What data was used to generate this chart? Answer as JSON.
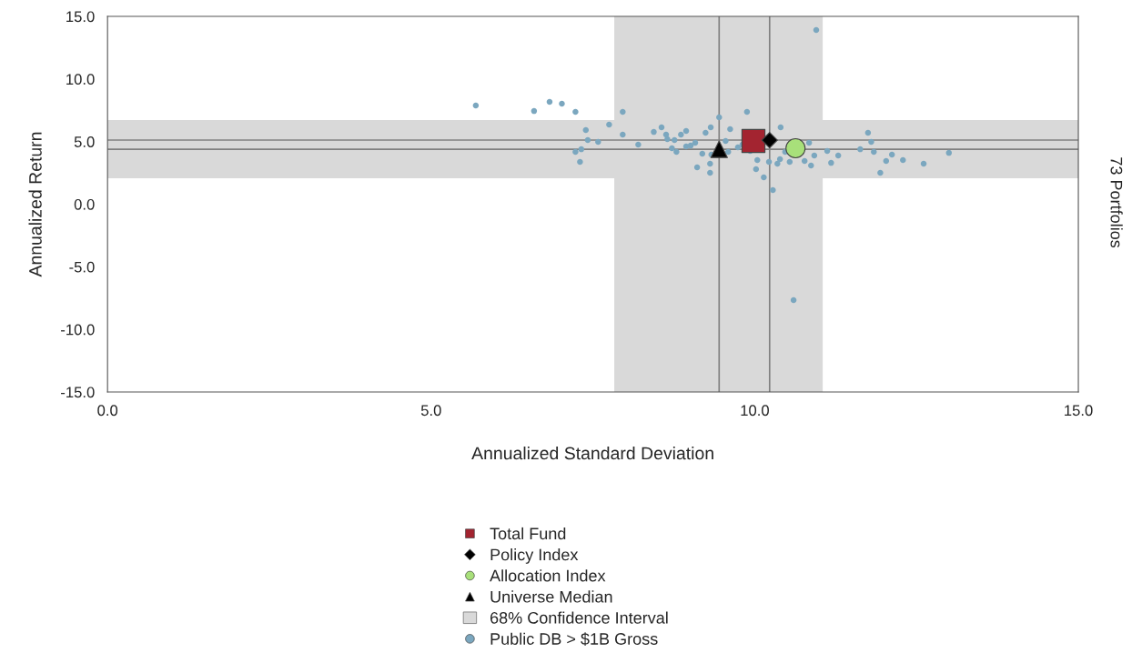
{
  "chart_data": {
    "type": "scatter",
    "xlabel": "Annualized Standard Deviation",
    "ylabel": "Annualized Return",
    "annotations": [
      "73 Portfolios"
    ],
    "xlim": [
      0,
      15
    ],
    "ylim": [
      -15,
      15
    ],
    "xticks": [
      {
        "value": 0,
        "label": "0.0"
      },
      {
        "value": 5,
        "label": "5.0"
      },
      {
        "value": 10,
        "label": "10.0"
      },
      {
        "value": 15,
        "label": "15.0"
      }
    ],
    "yticks": [
      {
        "value": -15,
        "label": "-15.0"
      },
      {
        "value": -10,
        "label": "-10.0"
      },
      {
        "value": -5,
        "label": "-5.0"
      },
      {
        "value": 0,
        "label": "0.0"
      },
      {
        "value": 5,
        "label": "5.0"
      },
      {
        "value": 10,
        "label": "10.0"
      },
      {
        "value": 15,
        "label": "15.0"
      }
    ],
    "grid": false,
    "legend": "bottom",
    "bands": [
      {
        "axis": "x",
        "from": 7.83,
        "to": 11.05,
        "label": "68% Confidence Interval",
        "color": "#d9d9d9"
      },
      {
        "axis": "y",
        "from": 2.07,
        "to": 6.72,
        "label": null,
        "color": "#d9d9d9"
      }
    ],
    "ref_lines": [
      {
        "axis": "x",
        "value": 9.45,
        "label": null,
        "color": "#808080"
      },
      {
        "axis": "x",
        "value": 10.23,
        "label": null,
        "color": "#808080"
      },
      {
        "axis": "y",
        "value": 5.12,
        "label": null,
        "color": "#808080"
      },
      {
        "axis": "y",
        "value": 4.39,
        "label": null,
        "color": "#808080"
      }
    ],
    "series": [
      {
        "name": "Total Fund",
        "color": "#a32430",
        "marker": "square",
        "x": [
          9.98
        ],
        "values": [
          5.05
        ]
      },
      {
        "name": "Policy Index",
        "color": "#000000",
        "marker": "diamond",
        "x": [
          10.23
        ],
        "values": [
          5.12
        ]
      },
      {
        "name": "Allocation Index",
        "color": "#a8e07a",
        "marker": "circle",
        "x": [
          10.63
        ],
        "values": [
          4.47
        ]
      },
      {
        "name": "Universe Median",
        "color": "#000000",
        "marker": "triangle",
        "x": [
          9.45
        ],
        "values": [
          4.39
        ]
      },
      {
        "name": "Public DB > $1B Gross",
        "color": "#7ba7bf",
        "marker": "circle",
        "x": [
          5.69,
          6.59,
          6.83,
          7.02,
          7.23,
          7.96,
          7.39,
          7.75,
          7.96,
          7.42,
          7.58,
          7.23,
          7.32,
          7.3,
          8.2,
          8.44,
          8.56,
          8.63,
          8.65,
          8.76,
          8.86,
          8.94,
          8.72,
          8.79,
          8.94,
          9.01,
          9.08,
          9.24,
          9.32,
          9.45,
          9.19,
          9.33,
          9.11,
          9.31,
          9.31,
          9.55,
          9.59,
          9.62,
          9.88,
          9.74,
          9.81,
          9.93,
          10.4,
          10.04,
          10.02,
          10.14,
          10.22,
          10.28,
          10.35,
          10.39,
          10.47,
          10.54,
          10.77,
          10.84,
          10.87,
          10.92,
          11.12,
          11.18,
          11.29,
          11.63,
          11.75,
          11.8,
          11.84,
          11.94,
          12.03,
          12.12,
          12.29,
          12.61,
          13.0,
          10.95,
          10.6
        ],
        "values": [
          7.88,
          7.44,
          8.17,
          8.03,
          7.37,
          7.37,
          5.92,
          6.36,
          5.56,
          5.12,
          4.98,
          4.18,
          4.39,
          3.38,
          4.76,
          5.77,
          6.14,
          5.56,
          5.19,
          5.12,
          5.56,
          5.85,
          4.47,
          4.18,
          4.61,
          4.68,
          4.9,
          5.7,
          6.14,
          6.94,
          4.03,
          3.96,
          2.94,
          3.23,
          2.51,
          5.05,
          4.18,
          5.99,
          7.37,
          4.54,
          4.76,
          4.25,
          6.14,
          3.52,
          2.8,
          2.14,
          3.38,
          1.13,
          3.23,
          3.6,
          4.18,
          3.38,
          3.45,
          4.9,
          3.09,
          3.89,
          4.25,
          3.3,
          3.89,
          4.39,
          5.7,
          4.98,
          4.18,
          2.51,
          3.45,
          3.96,
          3.52,
          3.23,
          4.1,
          13.91,
          -7.66
        ]
      }
    ]
  }
}
